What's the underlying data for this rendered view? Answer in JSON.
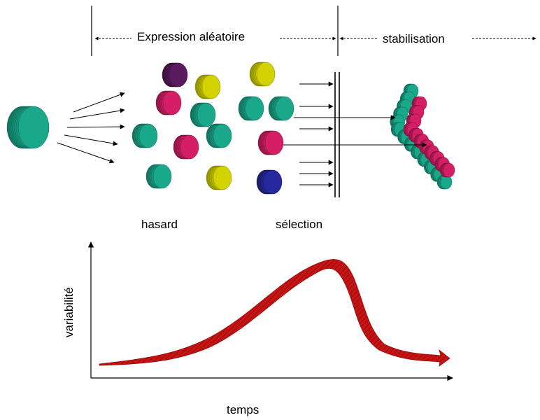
{
  "labels": {
    "expression": "Expression  aléatoire",
    "stabilisation": "stabilisation",
    "hasard": "hasard",
    "selection": "sélection",
    "ylabel": "variabilité",
    "xlabel": "temps"
  },
  "colors": {
    "green": "#1aa88a",
    "magenta": "#d41f66",
    "yellow": "#d2d200",
    "purple": "#5a1a5e",
    "blue": "#26299e",
    "curve": "#c41414",
    "ink": "#000000"
  },
  "icons": {
    "cell": "cylinder-cell-icon",
    "arrow": "arrow-icon",
    "barrier": "selection-barrier-icon"
  }
}
